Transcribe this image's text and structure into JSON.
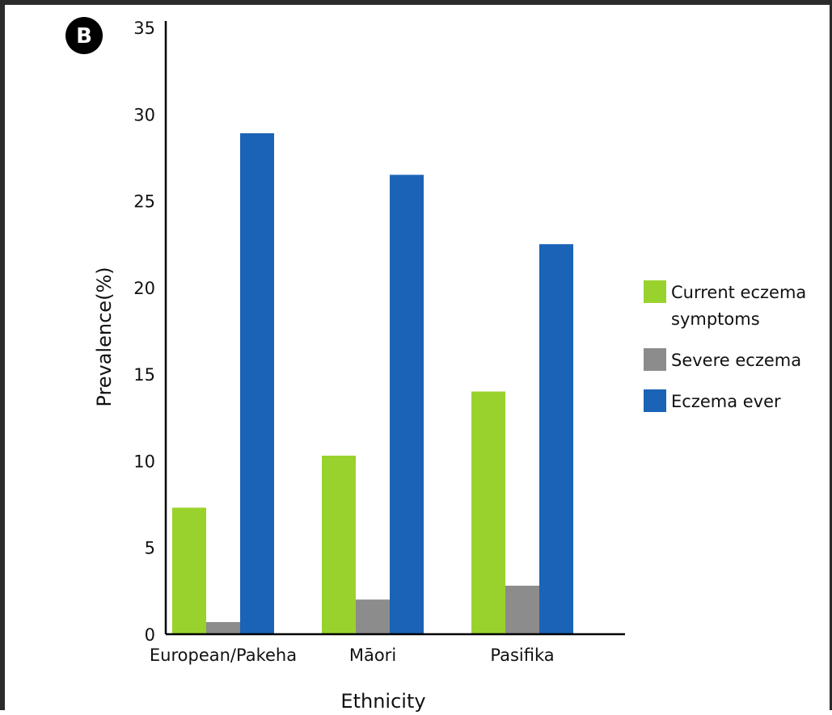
{
  "panel": {
    "letter": "B"
  },
  "chart_data": {
    "type": "bar",
    "title": "",
    "xlabel": "Ethnicity",
    "ylabel": "Prevalence(%)",
    "ylim": [
      0,
      35
    ],
    "yticks": [
      0,
      5,
      10,
      15,
      20,
      25,
      30,
      35
    ],
    "grid": false,
    "legend_position": "right",
    "categories": [
      "European/Pakeha",
      "Māori",
      "Pasifika"
    ],
    "series": [
      {
        "name": "Current eczema symptoms",
        "legend_lines": [
          "Current eczema",
          "symptoms"
        ],
        "color": "#9ad22d",
        "values": [
          7.3,
          10.3,
          14.0
        ]
      },
      {
        "name": "Severe eczema",
        "legend_lines": [
          "Severe eczema"
        ],
        "color": "#8c8c8c",
        "values": [
          0.7,
          2.0,
          2.8
        ]
      },
      {
        "name": "Eczema ever",
        "legend_lines": [
          "Eczema ever"
        ],
        "color": "#1b63b7",
        "values": [
          28.9,
          26.5,
          22.5
        ]
      }
    ]
  }
}
